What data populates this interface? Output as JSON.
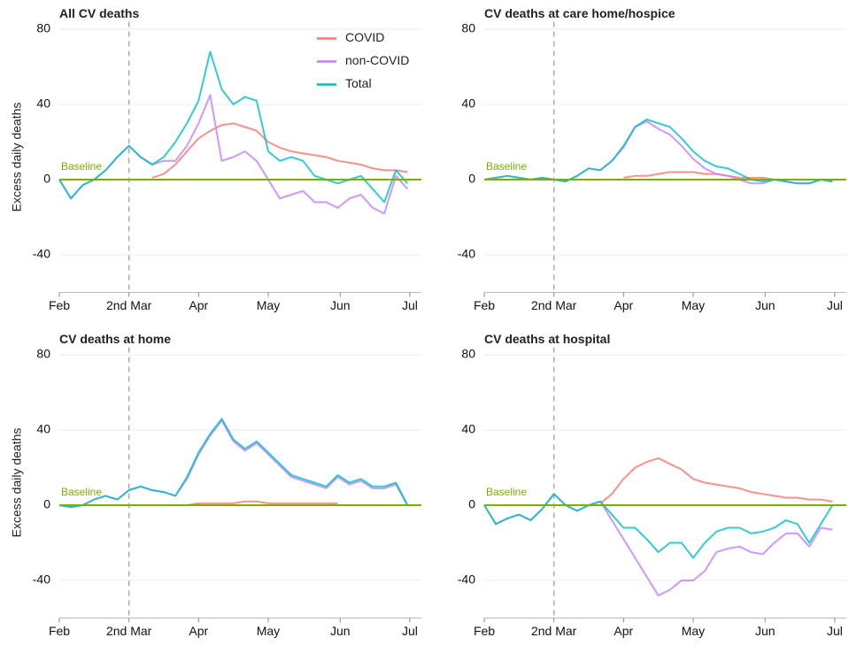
{
  "chart_data": [
    {
      "type": "line",
      "title": "All CV deaths",
      "ylabel": "Excess daily deaths",
      "x": [
        0,
        5,
        10,
        15,
        20,
        25,
        30,
        35,
        40,
        45,
        50,
        55,
        60,
        65,
        70,
        75,
        80,
        85,
        90,
        95,
        100,
        105,
        110,
        115,
        120,
        125,
        130,
        135,
        140,
        145,
        150
      ],
      "xlim": [
        0,
        156
      ],
      "xticks": [
        {
          "value": 0,
          "label": "Feb"
        },
        {
          "value": 30,
          "label": "2nd Mar"
        },
        {
          "value": 60,
          "label": "Apr"
        },
        {
          "value": 90,
          "label": "May"
        },
        {
          "value": 121,
          "label": "Jun"
        },
        {
          "value": 151,
          "label": "Jul"
        }
      ],
      "ylim": [
        -60,
        84
      ],
      "yticks": [
        -40,
        0,
        40,
        80
      ],
      "grid": true,
      "vline": 30,
      "baseline": {
        "value": 0,
        "label": "Baseline",
        "color": "#7cae00"
      },
      "legend": "top-right",
      "series": [
        {
          "name": "COVID",
          "color": "#f8766d",
          "values": [
            null,
            null,
            null,
            null,
            null,
            null,
            null,
            null,
            1,
            3,
            8,
            15,
            22,
            26,
            29,
            30,
            28,
            26,
            20,
            17,
            15,
            14,
            13,
            12,
            10,
            9,
            8,
            6,
            5,
            5,
            4
          ]
        },
        {
          "name": "non-COVID",
          "color": "#c77cff",
          "values": [
            0,
            -10,
            -3,
            0,
            5,
            12,
            18,
            12,
            8,
            10,
            10,
            18,
            30,
            45,
            10,
            12,
            15,
            10,
            0,
            -10,
            -8,
            -6,
            -12,
            -12,
            -15,
            -10,
            -8,
            -15,
            -18,
            2,
            -5
          ]
        },
        {
          "name": "Total",
          "color": "#00bfc4",
          "values": [
            0,
            -10,
            -3,
            0,
            5,
            12,
            18,
            12,
            8,
            12,
            20,
            30,
            42,
            68,
            48,
            40,
            44,
            42,
            15,
            10,
            12,
            10,
            2,
            0,
            -2,
            0,
            2,
            -5,
            -12,
            5,
            -2
          ]
        }
      ]
    },
    {
      "type": "line",
      "title": "CV deaths at care home/hospice",
      "x": [
        0,
        5,
        10,
        15,
        20,
        25,
        30,
        35,
        40,
        45,
        50,
        55,
        60,
        65,
        70,
        75,
        80,
        85,
        90,
        95,
        100,
        105,
        110,
        115,
        120,
        125,
        130,
        135,
        140,
        145,
        150
      ],
      "xlim": [
        0,
        156
      ],
      "xticks": [
        {
          "value": 0,
          "label": "Feb"
        },
        {
          "value": 30,
          "label": "2nd Mar"
        },
        {
          "value": 60,
          "label": "Apr"
        },
        {
          "value": 90,
          "label": "May"
        },
        {
          "value": 121,
          "label": "Jun"
        },
        {
          "value": 151,
          "label": "Jul"
        }
      ],
      "ylim": [
        -60,
        84
      ],
      "yticks": [
        -40,
        0,
        40,
        80
      ],
      "grid": true,
      "vline": 30,
      "baseline": {
        "value": 0,
        "label": "Baseline",
        "color": "#7cae00"
      },
      "series": [
        {
          "name": "COVID",
          "color": "#f8766d",
          "values": [
            null,
            null,
            null,
            null,
            null,
            null,
            null,
            null,
            null,
            null,
            null,
            null,
            1,
            2,
            2,
            3,
            4,
            4,
            4,
            3,
            3,
            2,
            1,
            1,
            1,
            0,
            0,
            0,
            0,
            null,
            null
          ]
        },
        {
          "name": "non-COVID",
          "color": "#c77cff",
          "values": [
            0,
            1,
            2,
            1,
            0,
            1,
            0,
            -1,
            2,
            6,
            5,
            10,
            17,
            28,
            31,
            27,
            24,
            18,
            11,
            6,
            3,
            2,
            0,
            -2,
            -2,
            0,
            -1,
            -2,
            -2,
            0,
            -1
          ]
        },
        {
          "name": "Total",
          "color": "#00bfc4",
          "values": [
            0,
            1,
            2,
            1,
            0,
            1,
            0,
            -1,
            2,
            6,
            5,
            10,
            18,
            28,
            32,
            30,
            28,
            22,
            15,
            10,
            7,
            6,
            3,
            0,
            -1,
            0,
            -1,
            -2,
            -2,
            0,
            -1
          ]
        }
      ]
    },
    {
      "type": "line",
      "title": "CV deaths at home",
      "ylabel": "Excess daily deaths",
      "x": [
        0,
        5,
        10,
        15,
        20,
        25,
        30,
        35,
        40,
        45,
        50,
        55,
        60,
        65,
        70,
        75,
        80,
        85,
        90,
        95,
        100,
        105,
        110,
        115,
        120,
        125,
        130,
        135,
        140,
        145,
        150
      ],
      "xlim": [
        0,
        156
      ],
      "xticks": [
        {
          "value": 0,
          "label": "Feb"
        },
        {
          "value": 30,
          "label": "2nd Mar"
        },
        {
          "value": 60,
          "label": "Apr"
        },
        {
          "value": 90,
          "label": "May"
        },
        {
          "value": 121,
          "label": "Jun"
        },
        {
          "value": 151,
          "label": "Jul"
        }
      ],
      "ylim": [
        -60,
        84
      ],
      "yticks": [
        -40,
        0,
        40,
        80
      ],
      "grid": true,
      "vline": 30,
      "baseline": {
        "value": 0,
        "label": "Baseline",
        "color": "#7cae00"
      },
      "series": [
        {
          "name": "COVID",
          "color": "#f8766d",
          "values": [
            null,
            null,
            null,
            null,
            null,
            null,
            null,
            null,
            null,
            null,
            null,
            0,
            1,
            1,
            1,
            1,
            2,
            2,
            1,
            1,
            1,
            1,
            1,
            1,
            1,
            null,
            null,
            null,
            null,
            null,
            null
          ]
        },
        {
          "name": "non-COVID",
          "color": "#c77cff",
          "values": [
            0,
            -1,
            0,
            3,
            5,
            3,
            8,
            10,
            8,
            7,
            5,
            14,
            27,
            37,
            45,
            34,
            29,
            33,
            27,
            21,
            15,
            13,
            11,
            9,
            15,
            11,
            13,
            9,
            9,
            11,
            0
          ]
        },
        {
          "name": "Total",
          "color": "#00bfc4",
          "values": [
            0,
            -1,
            0,
            3,
            5,
            3,
            8,
            10,
            8,
            7,
            5,
            15,
            28,
            38,
            46,
            35,
            30,
            34,
            28,
            22,
            16,
            14,
            12,
            10,
            16,
            12,
            14,
            10,
            10,
            12,
            0
          ]
        }
      ]
    },
    {
      "type": "line",
      "title": "CV deaths at hospital",
      "x": [
        0,
        5,
        10,
        15,
        20,
        25,
        30,
        35,
        40,
        45,
        50,
        55,
        60,
        65,
        70,
        75,
        80,
        85,
        90,
        95,
        100,
        105,
        110,
        115,
        120,
        125,
        130,
        135,
        140,
        145,
        150
      ],
      "xlim": [
        0,
        156
      ],
      "xticks": [
        {
          "value": 0,
          "label": "Feb"
        },
        {
          "value": 30,
          "label": "2nd Mar"
        },
        {
          "value": 60,
          "label": "Apr"
        },
        {
          "value": 90,
          "label": "May"
        },
        {
          "value": 121,
          "label": "Jun"
        },
        {
          "value": 151,
          "label": "Jul"
        }
      ],
      "ylim": [
        -60,
        84
      ],
      "yticks": [
        -40,
        0,
        40,
        80
      ],
      "grid": true,
      "vline": 30,
      "baseline": {
        "value": 0,
        "label": "Baseline",
        "color": "#7cae00"
      },
      "series": [
        {
          "name": "COVID",
          "color": "#f8766d",
          "values": [
            null,
            null,
            null,
            null,
            null,
            null,
            null,
            null,
            null,
            null,
            1,
            6,
            14,
            20,
            23,
            25,
            22,
            19,
            14,
            12,
            11,
            10,
            9,
            7,
            6,
            5,
            4,
            4,
            3,
            3,
            2
          ]
        },
        {
          "name": "non-COVID",
          "color": "#c77cff",
          "values": [
            0,
            -10,
            -7,
            -5,
            -8,
            -2,
            6,
            0,
            -3,
            0,
            2,
            -8,
            -18,
            -28,
            -38,
            -48,
            -45,
            -40,
            -40,
            -35,
            -25,
            -23,
            -22,
            -25,
            -26,
            -20,
            -15,
            -15,
            -22,
            -12,
            -13
          ]
        },
        {
          "name": "Total",
          "color": "#00bfc4",
          "values": [
            0,
            -10,
            -7,
            -5,
            -8,
            -2,
            6,
            0,
            -3,
            0,
            2,
            -5,
            -12,
            -12,
            -18,
            -25,
            -20,
            -20,
            -28,
            -20,
            -14,
            -12,
            -12,
            -15,
            -14,
            -12,
            -8,
            -10,
            -20,
            -10,
            0
          ]
        }
      ]
    }
  ]
}
